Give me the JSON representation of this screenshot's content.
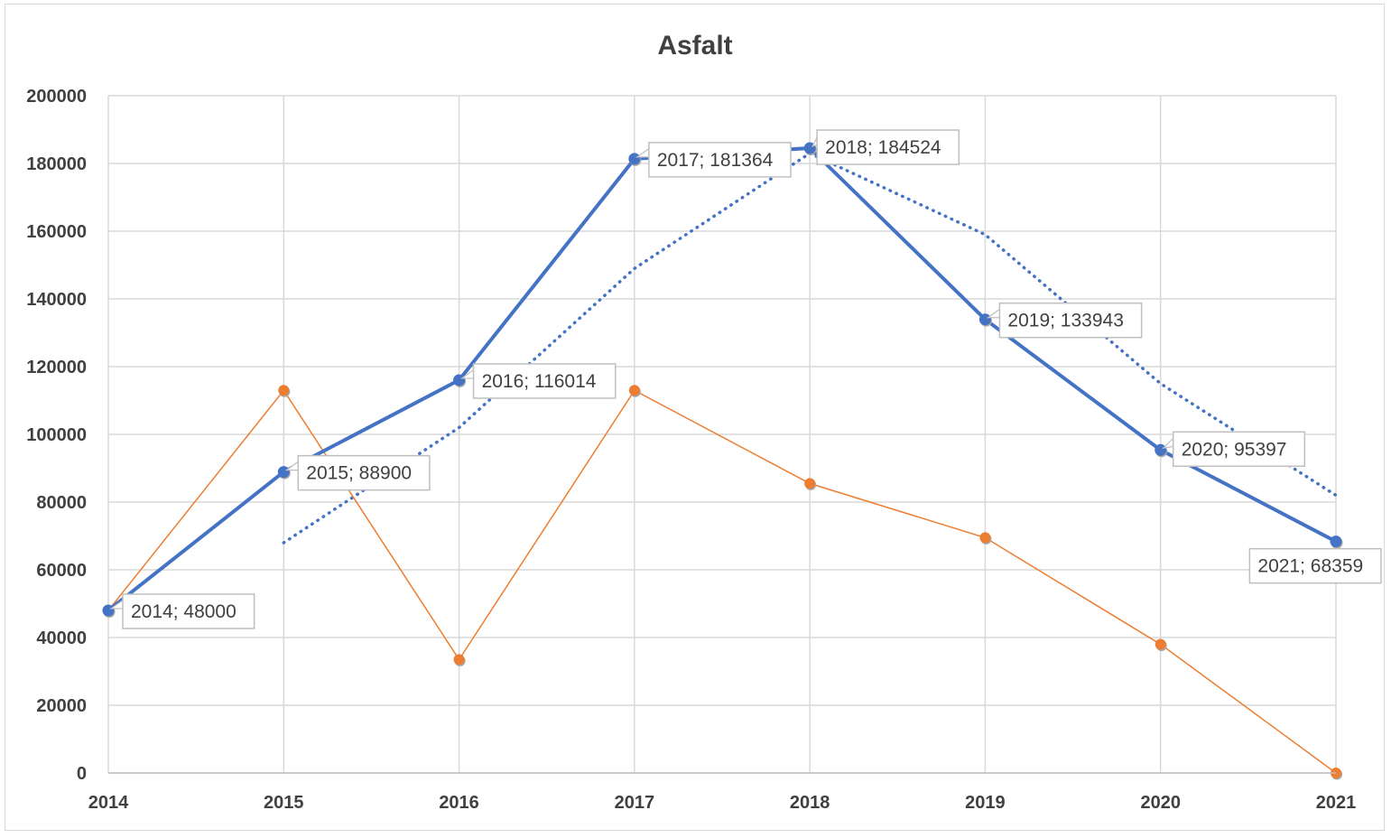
{
  "chart_data": {
    "type": "line",
    "title": "Asfalt",
    "xlabel": "",
    "ylabel": "",
    "x": [
      2014,
      2015,
      2016,
      2017,
      2018,
      2019,
      2020,
      2021
    ],
    "ylim": [
      0,
      200000
    ],
    "yticks": [
      0,
      20000,
      40000,
      60000,
      80000,
      100000,
      120000,
      140000,
      160000,
      180000,
      200000
    ],
    "grid": true,
    "legend": "none",
    "series": [
      {
        "values": [
          48000,
          88900,
          116014,
          181364,
          184524,
          133943,
          95397,
          68359
        ],
        "color": "#4472C4",
        "style": "solid-thick",
        "data_labels": [
          "2014; 48000",
          "2015; 88900",
          "2016; 116014",
          "2017; 181364",
          "2018; 184524",
          "2019; 133943",
          "2020; 95397",
          "2021; 68359"
        ]
      },
      {
        "values": [
          48000,
          113000,
          33500,
          113000,
          85500,
          69500,
          38000,
          0
        ],
        "color": "#ED7D31",
        "style": "solid-thin"
      },
      {
        "x": [
          2015,
          2016,
          2017,
          2018,
          2019,
          2020,
          2021
        ],
        "values": [
          68000,
          102000,
          149000,
          183000,
          159000,
          115000,
          82000
        ],
        "color": "#4472C4",
        "style": "dotted",
        "description": "moving average trendline"
      }
    ]
  }
}
